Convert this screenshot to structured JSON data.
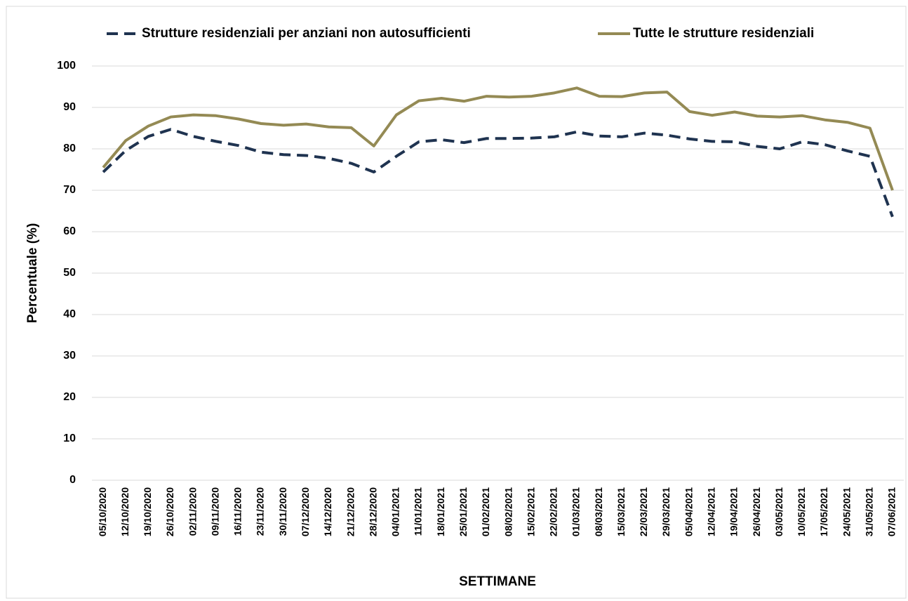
{
  "chart_data": {
    "type": "line",
    "y_label": "Percentuale (%)",
    "x_label": "SETTIMANE",
    "categories": [
      "05/10/2020",
      "12/10/2020",
      "19/10/2020",
      "26/10/2020",
      "02/11/2020",
      "09/11/2020",
      "16/11/2020",
      "23/11/2020",
      "30/11/2020",
      "07/12/2020",
      "14/12/2020",
      "21/12/2020",
      "28/12/2020",
      "04/01/2021",
      "11/01/2021",
      "18/01/2021",
      "25/01/2021",
      "01/02/2021",
      "08/02/2021",
      "15/02/2021",
      "22/02/2021",
      "01/03/2021",
      "08/03/2021",
      "15/03/2021",
      "22/03/2021",
      "29/03/2021",
      "05/04/2021",
      "12/04/2021",
      "19/04/2021",
      "26/04/2021",
      "03/05/2021",
      "10/05/2021",
      "17/05/2021",
      "24/05/2021",
      "31/05/2021",
      "07/06/2021"
    ],
    "series": [
      {
        "name": "Strutture residenziali per anziani non autosufficienti",
        "color": "#1f3350",
        "dashed": true,
        "values": [
          74.4,
          79.6,
          83,
          84.7,
          83,
          81.8,
          80.8,
          79.2,
          78.6,
          78.4,
          77.7,
          76.5,
          74.4,
          78.2,
          81.7,
          82.2,
          81.5,
          82.5,
          82.5,
          82.6,
          82.9,
          84.1,
          83.1,
          82.9,
          83.8,
          83.3,
          82.4,
          81.8,
          81.7,
          80.6,
          80,
          81.7,
          81,
          79.5,
          78.2,
          63.6
        ]
      },
      {
        "name": "Tutte le strutture residenziali",
        "color": "#948a54",
        "dashed": false,
        "values": [
          75.5,
          82,
          85.5,
          87.7,
          88.2,
          88,
          87.2,
          86.1,
          85.7,
          86,
          85.3,
          85.1,
          80.7,
          88.2,
          91.6,
          92.2,
          91.5,
          92.7,
          92.5,
          92.7,
          93.5,
          94.7,
          92.7,
          92.6,
          93.5,
          93.7,
          89,
          88.1,
          88.9,
          87.9,
          87.7,
          88,
          87,
          86.4,
          85,
          70
        ]
      }
    ],
    "ylim": [
      0,
      100
    ],
    "yticks": [
      0,
      10,
      20,
      30,
      40,
      50,
      60,
      70,
      80,
      90,
      100
    ],
    "grid": true
  }
}
